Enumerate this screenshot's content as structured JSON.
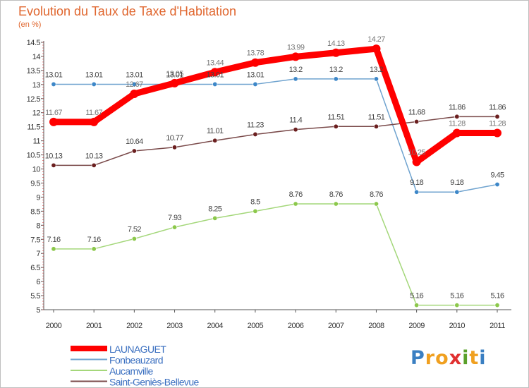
{
  "title": "Evolution du Taux de Taxe d'Habitation",
  "subtitle": "(en %)",
  "logo_letters": [
    {
      "ch": "P",
      "color": "#3a7fc2"
    },
    {
      "ch": "r",
      "color": "#f0a020"
    },
    {
      "ch": "o",
      "color": "#f0a020"
    },
    {
      "ch": "x",
      "color": "#e03030"
    },
    {
      "ch": "i",
      "color": "#5aa02a"
    },
    {
      "ch": "t",
      "color": "#f0a020"
    },
    {
      "ch": "i",
      "color": "#3a7fc2"
    }
  ],
  "chart_data": {
    "type": "line",
    "title": "Evolution du Taux de Taxe d'Habitation",
    "ylabel": "(en %)",
    "xlabel": "",
    "x": [
      2000,
      2001,
      2002,
      2003,
      2004,
      2005,
      2006,
      2007,
      2008,
      2009,
      2010,
      2011
    ],
    "ylim": [
      5,
      14.5
    ],
    "yticks": [
      5,
      5.5,
      6,
      6.5,
      7,
      7.5,
      8,
      8.5,
      9,
      9.5,
      10,
      10.5,
      11,
      11.5,
      12,
      12.5,
      13,
      13.5,
      14,
      14.5
    ],
    "grid": false,
    "legend_position": "bottom-left",
    "series": [
      {
        "name": "LAUNAGUET",
        "color": "#ff0000",
        "point_color": "#ff0000",
        "label_color": "#777777",
        "emphasis": true,
        "values": [
          11.67,
          11.67,
          12.67,
          13.05,
          13.44,
          13.78,
          13.99,
          14.13,
          14.27,
          10.25,
          11.28,
          11.28
        ],
        "labels": [
          "11.67",
          "11.67",
          "12.67",
          "13.05",
          "13.44",
          "13.78",
          "13.99",
          "14.13",
          "14.27",
          "10.25",
          "11.28",
          "11.28"
        ]
      },
      {
        "name": "Fonbeauzard",
        "color": "#6fa3cf",
        "point_color": "#3d87c8",
        "label_color": "#444444",
        "emphasis": false,
        "values": [
          13.01,
          13.01,
          13.01,
          13.01,
          13.01,
          13.01,
          13.2,
          13.2,
          13.2,
          9.18,
          9.18,
          9.45
        ],
        "labels": [
          "13.01",
          "13.01",
          "13.01",
          "13.01",
          "13.01",
          "13.01",
          "13.2",
          "13.2",
          "13.2",
          "9.18",
          "9.18",
          "9.45"
        ]
      },
      {
        "name": "Aucamville",
        "color": "#a4d77a",
        "point_color": "#8cc84b",
        "label_color": "#444444",
        "emphasis": false,
        "values": [
          7.16,
          7.16,
          7.52,
          7.93,
          8.25,
          8.5,
          8.76,
          8.76,
          8.76,
          5.16,
          5.16,
          5.16
        ],
        "labels": [
          "7.16",
          "7.16",
          "7.52",
          "7.93",
          "8.25",
          "8.5",
          "8.76",
          "8.76",
          "8.76",
          "5.16",
          "5.16",
          "5.16"
        ]
      },
      {
        "name": "Saint-Geniès-Bellevue",
        "color": "#7a4a4a",
        "point_color": "#6b1f1f",
        "label_color": "#444444",
        "emphasis": false,
        "values": [
          10.13,
          10.13,
          10.64,
          10.77,
          11.01,
          11.23,
          11.4,
          11.51,
          11.51,
          11.68,
          11.86,
          11.86
        ],
        "labels": [
          "10.13",
          "10.13",
          "10.64",
          "10.77",
          "11.01",
          "11.23",
          "11.4",
          "11.51",
          "11.51",
          "11.68",
          "11.86",
          "11.86"
        ]
      }
    ]
  }
}
